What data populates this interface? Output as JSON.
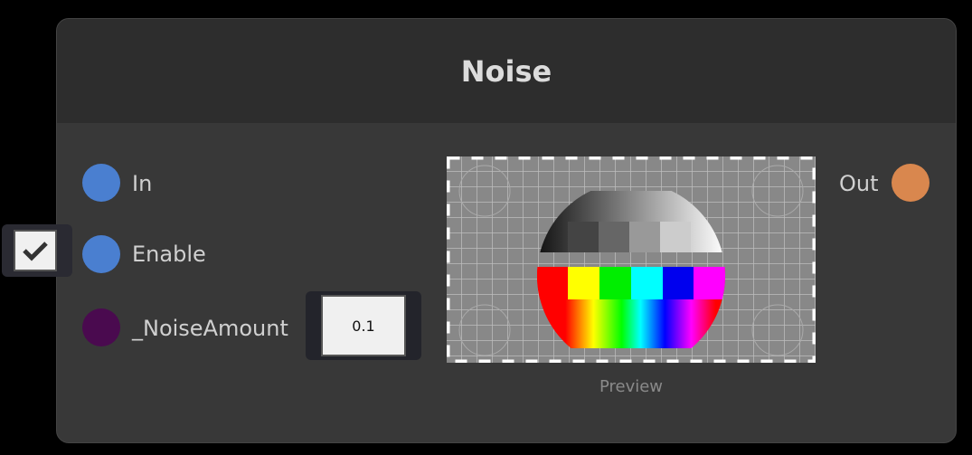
{
  "node": {
    "title": "Noise"
  },
  "inputs": [
    {
      "label": "In",
      "port_color": "#4a7fd0"
    },
    {
      "label": "Enable",
      "port_color": "#4a7fd0",
      "checked": true
    },
    {
      "label": "_NoiseAmount",
      "port_color": "#4a0a4f",
      "value": "0.1"
    }
  ],
  "outputs": [
    {
      "label": "Out",
      "port_color": "#d9874e"
    }
  ],
  "preview": {
    "label": "Preview"
  }
}
